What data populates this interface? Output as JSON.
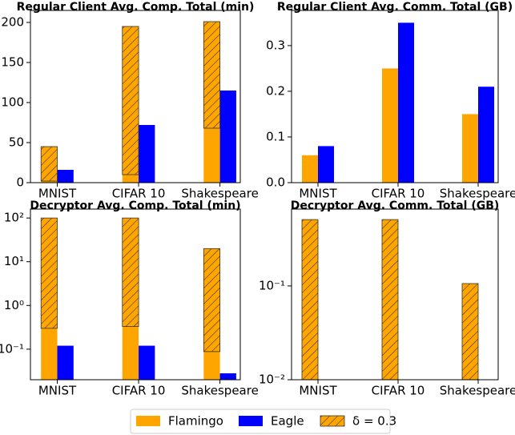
{
  "chart_data": [
    {
      "type": "bar",
      "title": "Regular Client Avg. Comp. Total (min)",
      "log": false,
      "categories": [
        "MNIST",
        "CIFAR 10",
        "Shakespeare"
      ],
      "series": [
        {
          "name": "Flamingo",
          "color": "#ffa500",
          "values": [
            2,
            10,
            68
          ]
        },
        {
          "name": "Eagle",
          "color": "#0000ff",
          "values": [
            16,
            72,
            115
          ]
        },
        {
          "name": "δ = 0.3",
          "color": "#ffa500",
          "hatch": true,
          "stack_on": "Flamingo",
          "values": [
            43,
            185,
            133
          ]
        }
      ],
      "ylim": [
        0,
        215
      ],
      "yticks": [
        0,
        50,
        100,
        150,
        200
      ]
    },
    {
      "type": "bar",
      "title": "Regular Client Avg. Comm. Total (GB)",
      "log": false,
      "categories": [
        "MNIST",
        "CIFAR 10",
        "Shakespeare"
      ],
      "series": [
        {
          "name": "Flamingo",
          "color": "#ffa500",
          "values": [
            0.06,
            0.25,
            0.15
          ]
        },
        {
          "name": "Eagle",
          "color": "#0000ff",
          "values": [
            0.08,
            0.35,
            0.21
          ]
        }
      ],
      "ylim": [
        0,
        0.377
      ],
      "yticks": [
        {
          "value": 0,
          "label": "0.0"
        },
        0.1,
        0.2,
        0.3
      ]
    },
    {
      "type": "bar",
      "title": "Decryptor Avg. Comp. Total (min)",
      "log": true,
      "categories": [
        "MNIST",
        "CIFAR 10",
        "Shakespeare"
      ],
      "series": [
        {
          "name": "Flamingo",
          "color": "#ffa500",
          "values": [
            0.3,
            0.33,
            0.088
          ]
        },
        {
          "name": "Eagle",
          "color": "#0000ff",
          "values": [
            0.12,
            0.12,
            0.028
          ]
        },
        {
          "name": "δ = 0.3",
          "color": "#ffa500",
          "hatch": true,
          "stack_on": "Flamingo",
          "values": [
            99.7,
            99.67,
            19.9
          ]
        }
      ],
      "ylim": [
        0.02,
        160
      ],
      "yticks": [
        {
          "value": 0.1,
          "label": "10⁻¹"
        },
        {
          "value": 1,
          "label": "10⁰"
        },
        {
          "value": 10,
          "label": "10¹"
        },
        {
          "value": 100,
          "label": "10²"
        }
      ]
    },
    {
      "type": "bar",
      "title": "Decryptor Avg. Comm. Total (GB)",
      "log": true,
      "categories": [
        "MNIST",
        "CIFAR 10",
        "Shakespeare"
      ],
      "series": [
        {
          "name": "Flamingo",
          "color": "#ffa500",
          "values": [
            null,
            null,
            null
          ]
        },
        {
          "name": "Eagle",
          "color": "#0000ff",
          "values": [
            null,
            null,
            null
          ]
        },
        {
          "name": "δ = 0.3",
          "color": "#ffa500",
          "hatch": true,
          "stack_on": "Flamingo",
          "values": [
            0.51,
            0.51,
            0.106
          ]
        }
      ],
      "ylim": [
        0.01,
        0.66
      ],
      "yticks": [
        {
          "value": 0.01,
          "label": "10⁻²"
        },
        {
          "value": 0.1,
          "label": "10⁻¹"
        }
      ]
    }
  ]
}
